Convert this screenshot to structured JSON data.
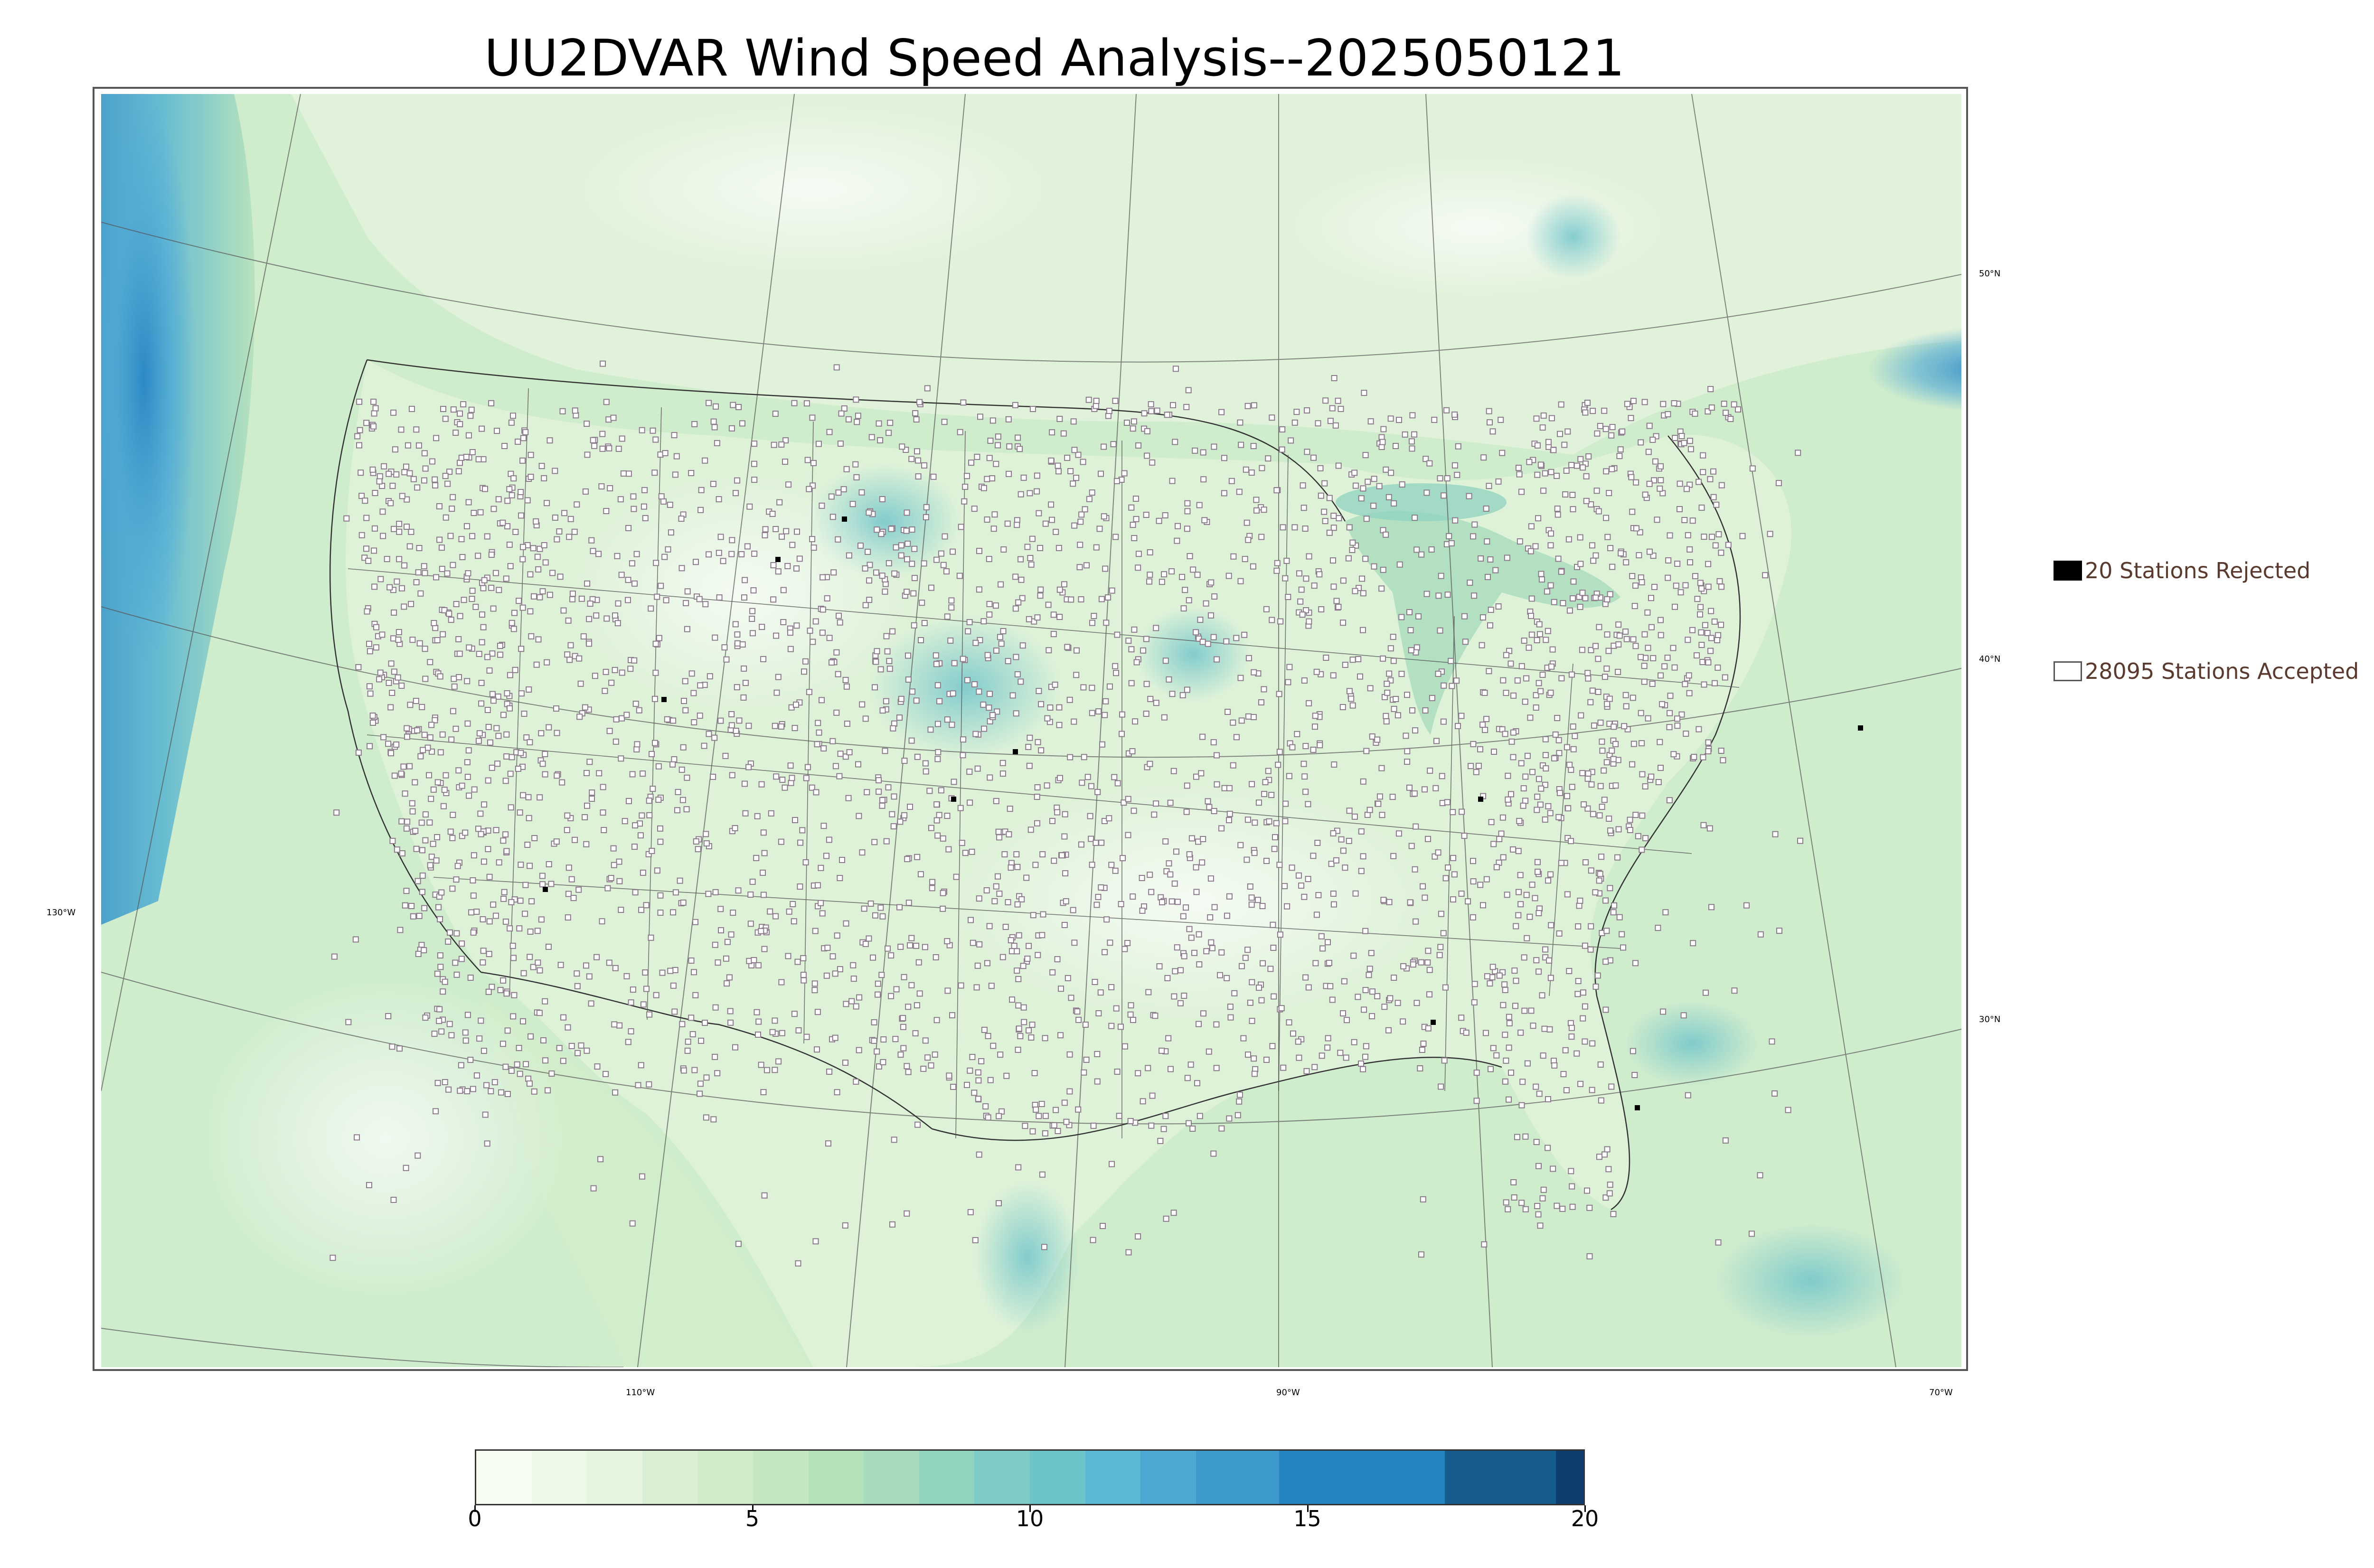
{
  "title": "UU2DVAR Wind Speed Analysis--2025050121",
  "legend": {
    "rejected_label": "20 Stations Rejected",
    "accepted_label": "28095 Stations Accepted"
  },
  "meridian_labels": [
    "130°W",
    "110°W",
    "90°W",
    "70°W"
  ],
  "parallel_labels": [
    "50°N",
    "40°N",
    "30°N"
  ],
  "colorbar": {
    "min": 0,
    "max": 20,
    "ticks": [
      0,
      5,
      10,
      15,
      20
    ],
    "tick_labels": [
      "0",
      "5",
      "10",
      "15",
      "20"
    ],
    "segments": [
      {
        "from": 0,
        "to": 1,
        "color": "#f7fcf0"
      },
      {
        "from": 1,
        "to": 2,
        "color": "#eef8e8"
      },
      {
        "from": 2,
        "to": 3,
        "color": "#e4f4de"
      },
      {
        "from": 3,
        "to": 4,
        "color": "#daf0d4"
      },
      {
        "from": 4,
        "to": 5,
        "color": "#d0ecca"
      },
      {
        "from": 5,
        "to": 6,
        "color": "#c4e7c1"
      },
      {
        "from": 6,
        "to": 7,
        "color": "#b5e1bb"
      },
      {
        "from": 7,
        "to": 8,
        "color": "#a6dbbc"
      },
      {
        "from": 8,
        "to": 9,
        "color": "#92d3c0"
      },
      {
        "from": 9,
        "to": 10,
        "color": "#7ecbc6"
      },
      {
        "from": 10,
        "to": 11,
        "color": "#6dc3ca"
      },
      {
        "from": 11,
        "to": 12,
        "color": "#5cb7d2"
      },
      {
        "from": 12,
        "to": 13,
        "color": "#4ca8d1"
      },
      {
        "from": 13,
        "to": 14.5,
        "color": "#3e99cc"
      },
      {
        "from": 14.5,
        "to": 17.5,
        "color": "#2384bf"
      },
      {
        "from": 17.5,
        "to": 19.5,
        "color": "#165d8e"
      },
      {
        "from": 19.5,
        "to": 20,
        "color": "#0e3d6e"
      }
    ]
  },
  "colors": {
    "ocean_green": "#cfeccd",
    "land_green": "#def2d8",
    "windy_blue": "#4fa8d6",
    "strong_blue": "#2a86c4",
    "station_marker": "#8a7a8a",
    "rejected_marker": "#000000",
    "legend_text": "#5a3a2e"
  }
}
